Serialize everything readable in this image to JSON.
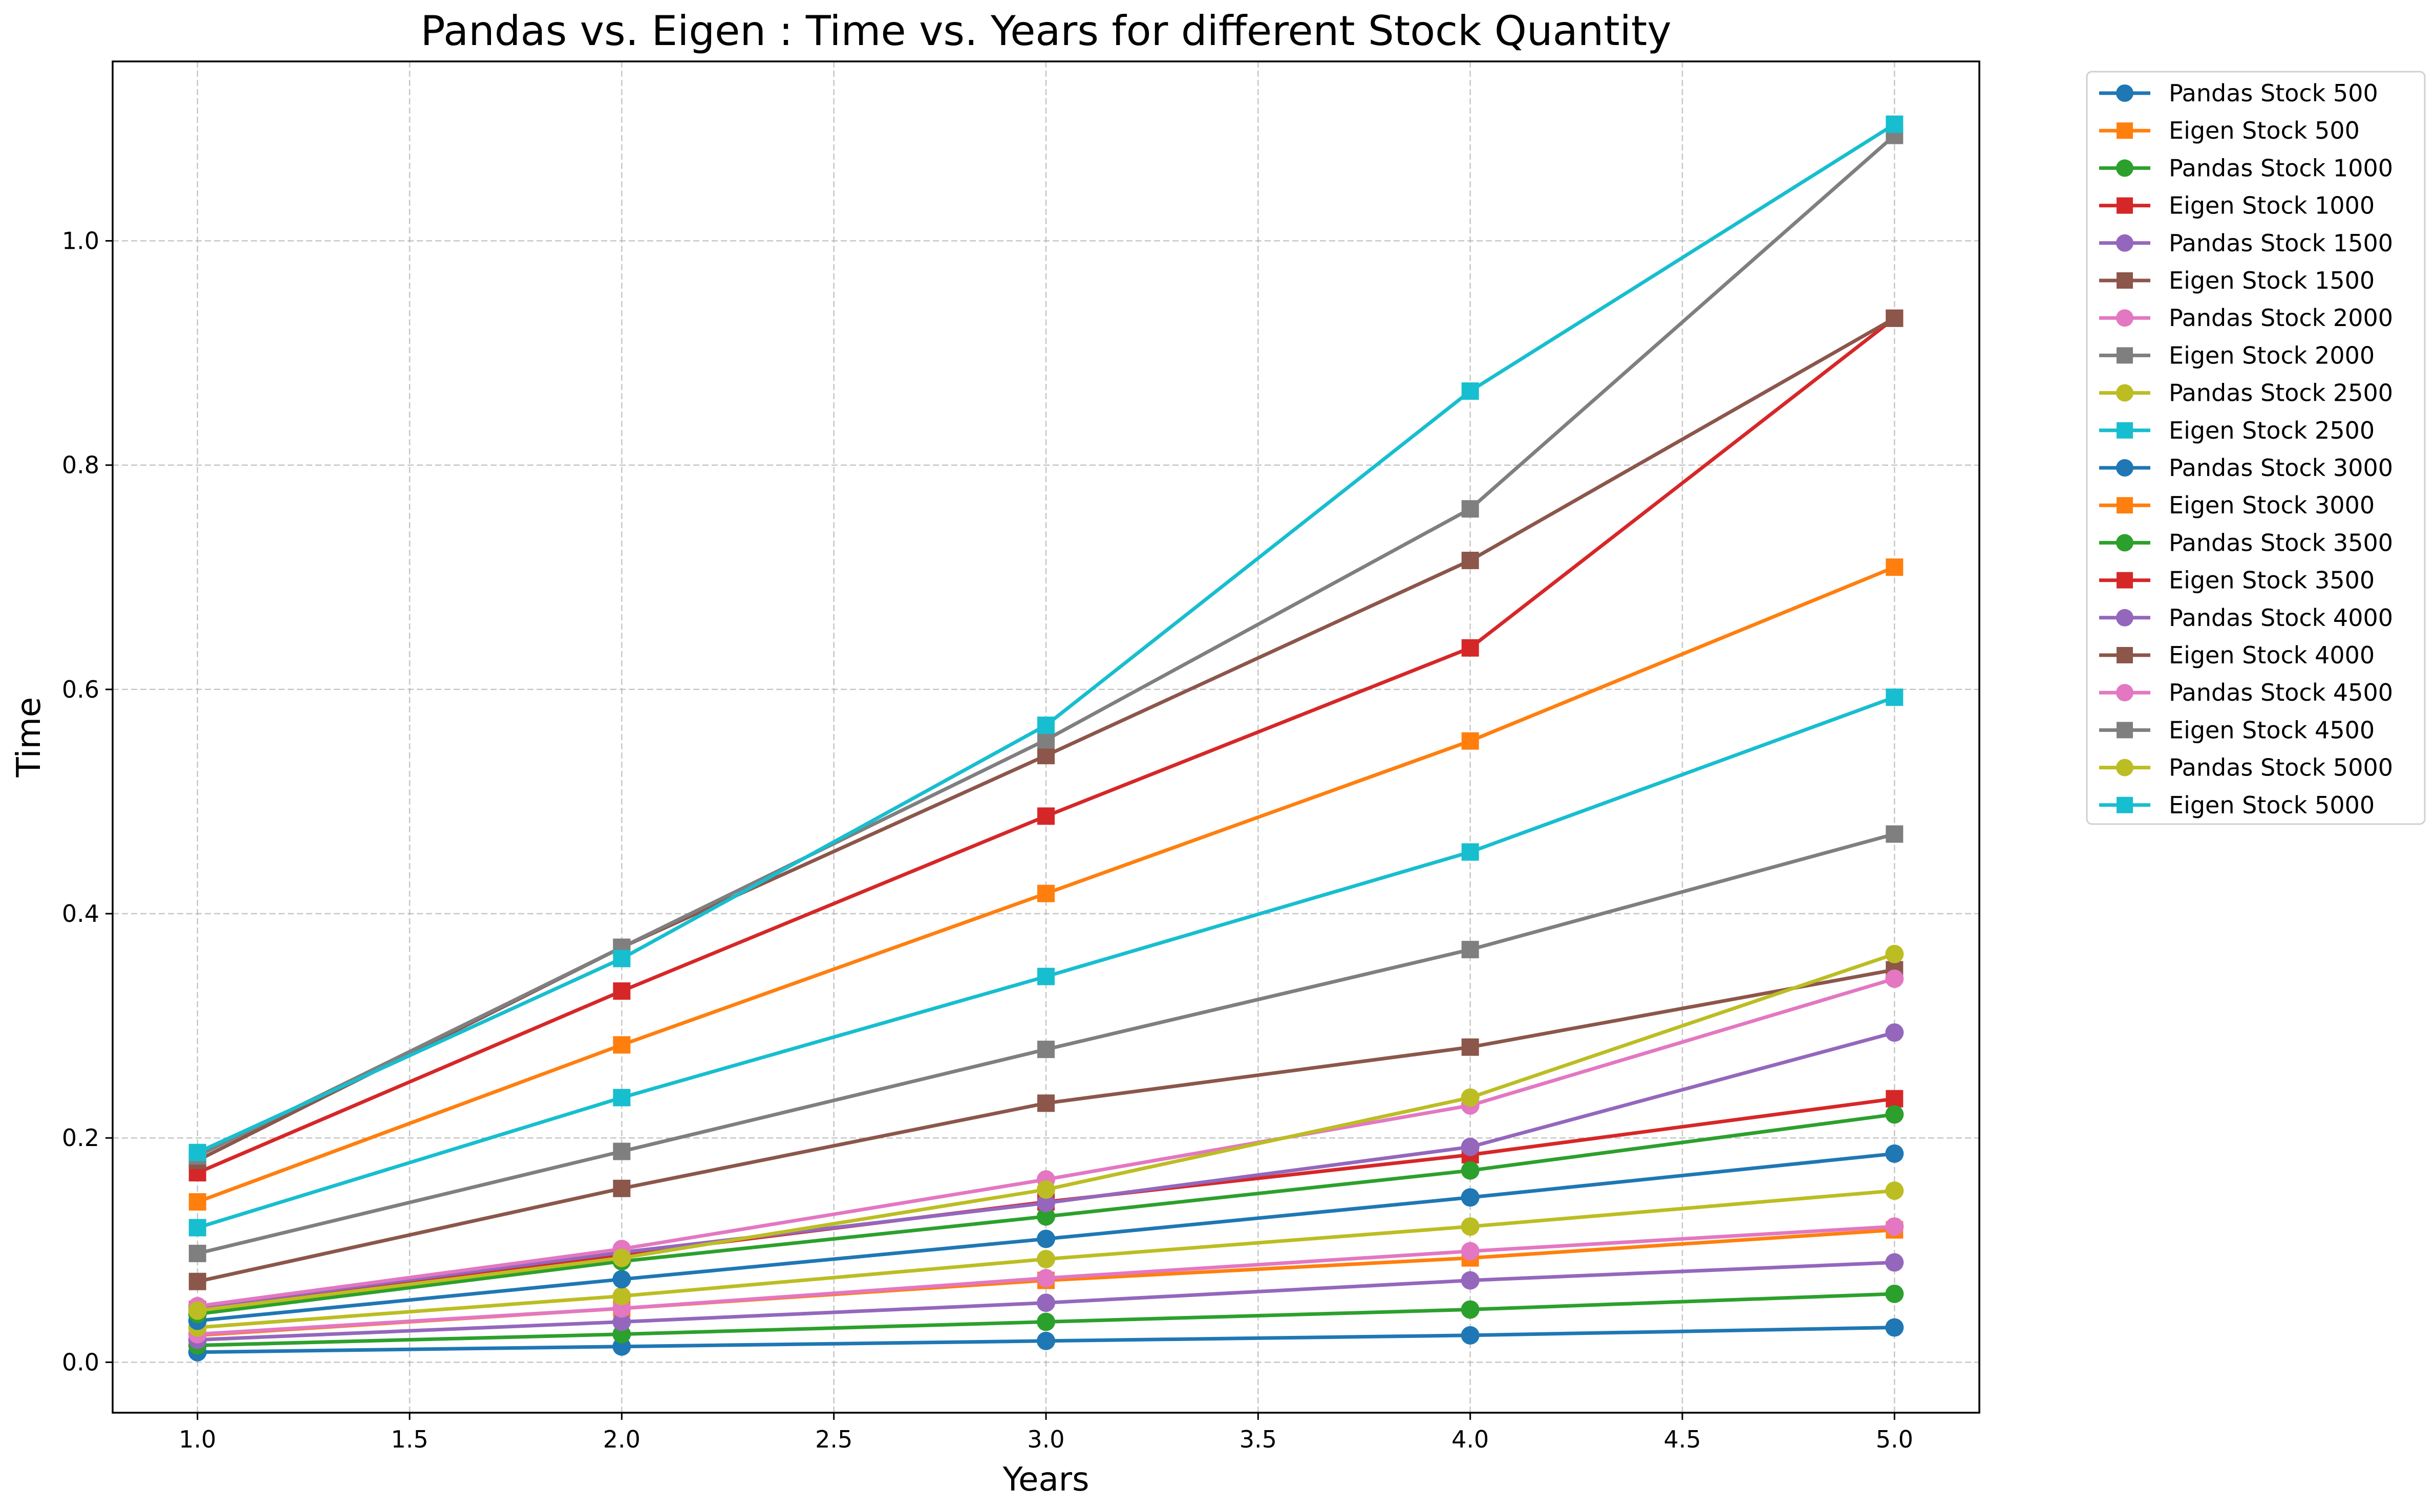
{
  "chart_data": {
    "type": "line",
    "title": "Pandas vs. Eigen : Time vs. Years for different Stock Quantity",
    "xlabel": "Years",
    "ylabel": "Time",
    "xlim": [
      0.8,
      5.2
    ],
    "ylim": [
      -0.045,
      1.16
    ],
    "xticks": [
      1.0,
      1.5,
      2.0,
      2.5,
      3.0,
      3.5,
      4.0,
      4.5,
      5.0
    ],
    "xtick_labels": [
      "1.0",
      "1.5",
      "2.0",
      "2.5",
      "3.0",
      "3.5",
      "4.0",
      "4.5",
      "5.0"
    ],
    "yticks": [
      0.0,
      0.2,
      0.4,
      0.6,
      0.8,
      1.0
    ],
    "ytick_labels": [
      "0.0",
      "0.2",
      "0.4",
      "0.6",
      "0.8",
      "1.0"
    ],
    "grid": true,
    "legend_position": "outside-right-top",
    "x": [
      1,
      2,
      3,
      4,
      5
    ],
    "series": [
      {
        "name": "Pandas Stock 500",
        "color": "#1f77b4",
        "marker": "circle",
        "values": [
          0.009,
          0.014,
          0.019,
          0.024,
          0.031
        ]
      },
      {
        "name": "Eigen Stock 500",
        "color": "#ff7f0e",
        "marker": "square",
        "values": [
          0.024,
          0.048,
          0.073,
          0.093,
          0.118
        ]
      },
      {
        "name": "Pandas Stock 1000",
        "color": "#2ca02c",
        "marker": "circle",
        "values": [
          0.015,
          0.025,
          0.036,
          0.047,
          0.061
        ]
      },
      {
        "name": "Eigen Stock 1000",
        "color": "#d62728",
        "marker": "square",
        "values": [
          0.047,
          0.096,
          0.143,
          0.185,
          0.235
        ]
      },
      {
        "name": "Pandas Stock 1500",
        "color": "#9467bd",
        "marker": "circle",
        "values": [
          0.02,
          0.036,
          0.053,
          0.073,
          0.089
        ]
      },
      {
        "name": "Eigen Stock 1500",
        "color": "#8c564b",
        "marker": "square",
        "values": [
          0.072,
          0.155,
          0.231,
          0.281,
          0.35
        ]
      },
      {
        "name": "Pandas Stock 2000",
        "color": "#e377c2",
        "marker": "circle",
        "values": [
          0.025,
          0.048,
          0.075,
          0.099,
          0.121
        ]
      },
      {
        "name": "Eigen Stock 2000",
        "color": "#7f7f7f",
        "marker": "square",
        "values": [
          0.097,
          0.188,
          0.279,
          0.368,
          0.471
        ]
      },
      {
        "name": "Pandas Stock 2500",
        "color": "#bcbd22",
        "marker": "circle",
        "values": [
          0.031,
          0.059,
          0.092,
          0.121,
          0.153
        ]
      },
      {
        "name": "Eigen Stock 2500",
        "color": "#17becf",
        "marker": "square",
        "values": [
          0.12,
          0.236,
          0.344,
          0.455,
          0.593
        ]
      },
      {
        "name": "Pandas Stock 3000",
        "color": "#1f77b4",
        "marker": "circle",
        "values": [
          0.037,
          0.074,
          0.11,
          0.147,
          0.186
        ]
      },
      {
        "name": "Eigen Stock 3000",
        "color": "#ff7f0e",
        "marker": "square",
        "values": [
          0.143,
          0.283,
          0.418,
          0.554,
          0.709
        ]
      },
      {
        "name": "Pandas Stock 3500",
        "color": "#2ca02c",
        "marker": "circle",
        "values": [
          0.043,
          0.09,
          0.13,
          0.171,
          0.221
        ]
      },
      {
        "name": "Eigen Stock 3500",
        "color": "#d62728",
        "marker": "square",
        "values": [
          0.169,
          0.331,
          0.487,
          0.637,
          0.931
        ]
      },
      {
        "name": "Pandas Stock 4000",
        "color": "#9467bd",
        "marker": "circle",
        "values": [
          0.049,
          0.098,
          0.142,
          0.192,
          0.294
        ]
      },
      {
        "name": "Eigen Stock 4000",
        "color": "#8c564b",
        "marker": "square",
        "values": [
          0.18,
          0.37,
          0.541,
          0.715,
          0.931
        ]
      },
      {
        "name": "Pandas Stock 4500",
        "color": "#e377c2",
        "marker": "circle",
        "values": [
          0.05,
          0.101,
          0.163,
          0.229,
          0.342
        ]
      },
      {
        "name": "Eigen Stock 4500",
        "color": "#7f7f7f",
        "marker": "square",
        "values": [
          0.184,
          0.37,
          0.555,
          0.761,
          1.094
        ]
      },
      {
        "name": "Pandas Stock 5000",
        "color": "#bcbd22",
        "marker": "circle",
        "values": [
          0.046,
          0.093,
          0.154,
          0.236,
          0.364
        ]
      },
      {
        "name": "Eigen Stock 5000",
        "color": "#17becf",
        "marker": "square",
        "values": [
          0.187,
          0.36,
          0.568,
          0.866,
          1.104
        ]
      }
    ]
  }
}
